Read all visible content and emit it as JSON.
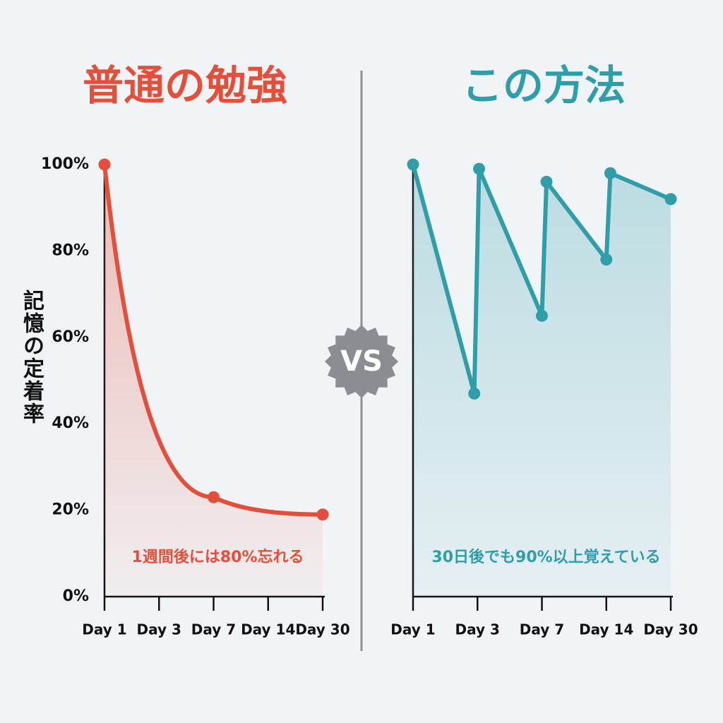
{
  "vs_label": "VS",
  "chart_data": [
    {
      "type": "line",
      "title": "普通の勉強",
      "y_label": "記憶の定着率",
      "color": "#e2503b",
      "smooth": true,
      "x": [
        1,
        7,
        30
      ],
      "values": [
        100,
        23,
        19
      ],
      "xlim": [
        1,
        30
      ],
      "xticks": [
        {
          "value": 1,
          "label": "Day 1"
        },
        {
          "value": 3,
          "label": "Day 3"
        },
        {
          "value": 7,
          "label": "Day 7"
        },
        {
          "value": 14,
          "label": "Day 14"
        },
        {
          "value": 30,
          "label": "Day 30"
        }
      ],
      "ylim": [
        0,
        100
      ],
      "yticks": [
        {
          "value": 0,
          "label": "0%"
        },
        {
          "value": 20,
          "label": "20%"
        },
        {
          "value": 40,
          "label": "40%"
        },
        {
          "value": 60,
          "label": "60%"
        },
        {
          "value": 80,
          "label": "80%"
        },
        {
          "value": 100,
          "label": "100%"
        }
      ],
      "annotation": "1週間後には80%忘れる"
    },
    {
      "type": "line",
      "title": "この方法",
      "color": "#2f9ea9",
      "smooth": false,
      "x": [
        1,
        2.9,
        3.1,
        7,
        7.5,
        14,
        15,
        30
      ],
      "values": [
        100,
        47,
        99,
        65,
        96,
        78,
        98,
        92
      ],
      "xlim": [
        1,
        30
      ],
      "xticks": [
        {
          "value": 1,
          "label": "Day 1"
        },
        {
          "value": 3,
          "label": "Day 3"
        },
        {
          "value": 7,
          "label": "Day 7"
        },
        {
          "value": 14,
          "label": "Day 14"
        },
        {
          "value": 30,
          "label": "Day 30"
        }
      ],
      "ylim": [
        0,
        100
      ],
      "annotation": "30日後でも90%以上覚えている"
    }
  ]
}
